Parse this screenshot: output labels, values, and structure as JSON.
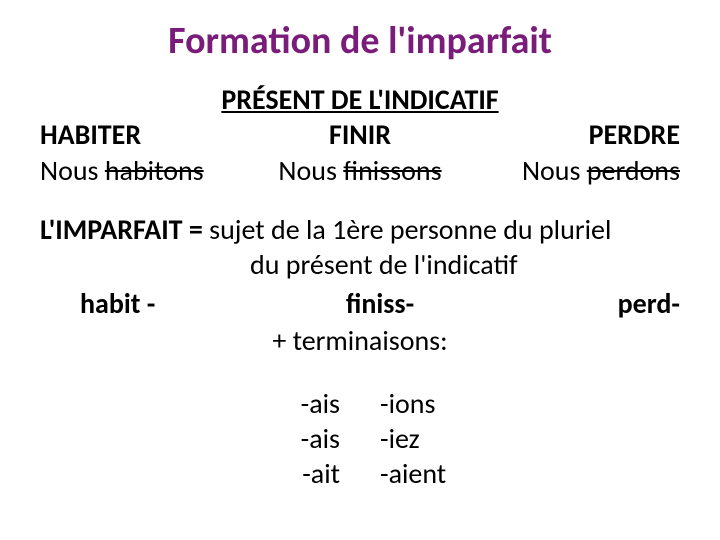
{
  "colors": {
    "title": "#7a1d7a",
    "text": "#000000",
    "background": "#ffffff"
  },
  "typography": {
    "title_fontsize": 38,
    "body_fontsize": 28,
    "title_weight": "700",
    "body_weight_bold": "700"
  },
  "title": "Formation de l'imparfait",
  "present": {
    "heading": "PRÉSENT DE L'INDICATIF",
    "verbs": {
      "col1": "HABITER",
      "col2": "FINIR",
      "col3": "PERDRE"
    },
    "nous": {
      "col1_pre": "Nous ",
      "col1_strike": "habitons",
      "col2_pre": "Nous ",
      "col2_strike": "finissons",
      "col3_pre": "Nous ",
      "col3_strike": "perdons"
    }
  },
  "imparfait": {
    "label": "L'IMPARFAIT = ",
    "def_line1_rest": " sujet de la 1ère personne du pluriel",
    "def_line2": "du présent de l'indicatif",
    "stems": {
      "s1": "habit -",
      "s2": "finiss-",
      "s3": "perd-"
    },
    "terminaisons_label": "+ terminaisons:",
    "endings": {
      "r1c1": "-ais",
      "r1c2": "-ions",
      "r2c1": "-ais",
      "r2c2": "-iez",
      "r3c1": "-ait",
      "r3c2": "-aient"
    }
  }
}
